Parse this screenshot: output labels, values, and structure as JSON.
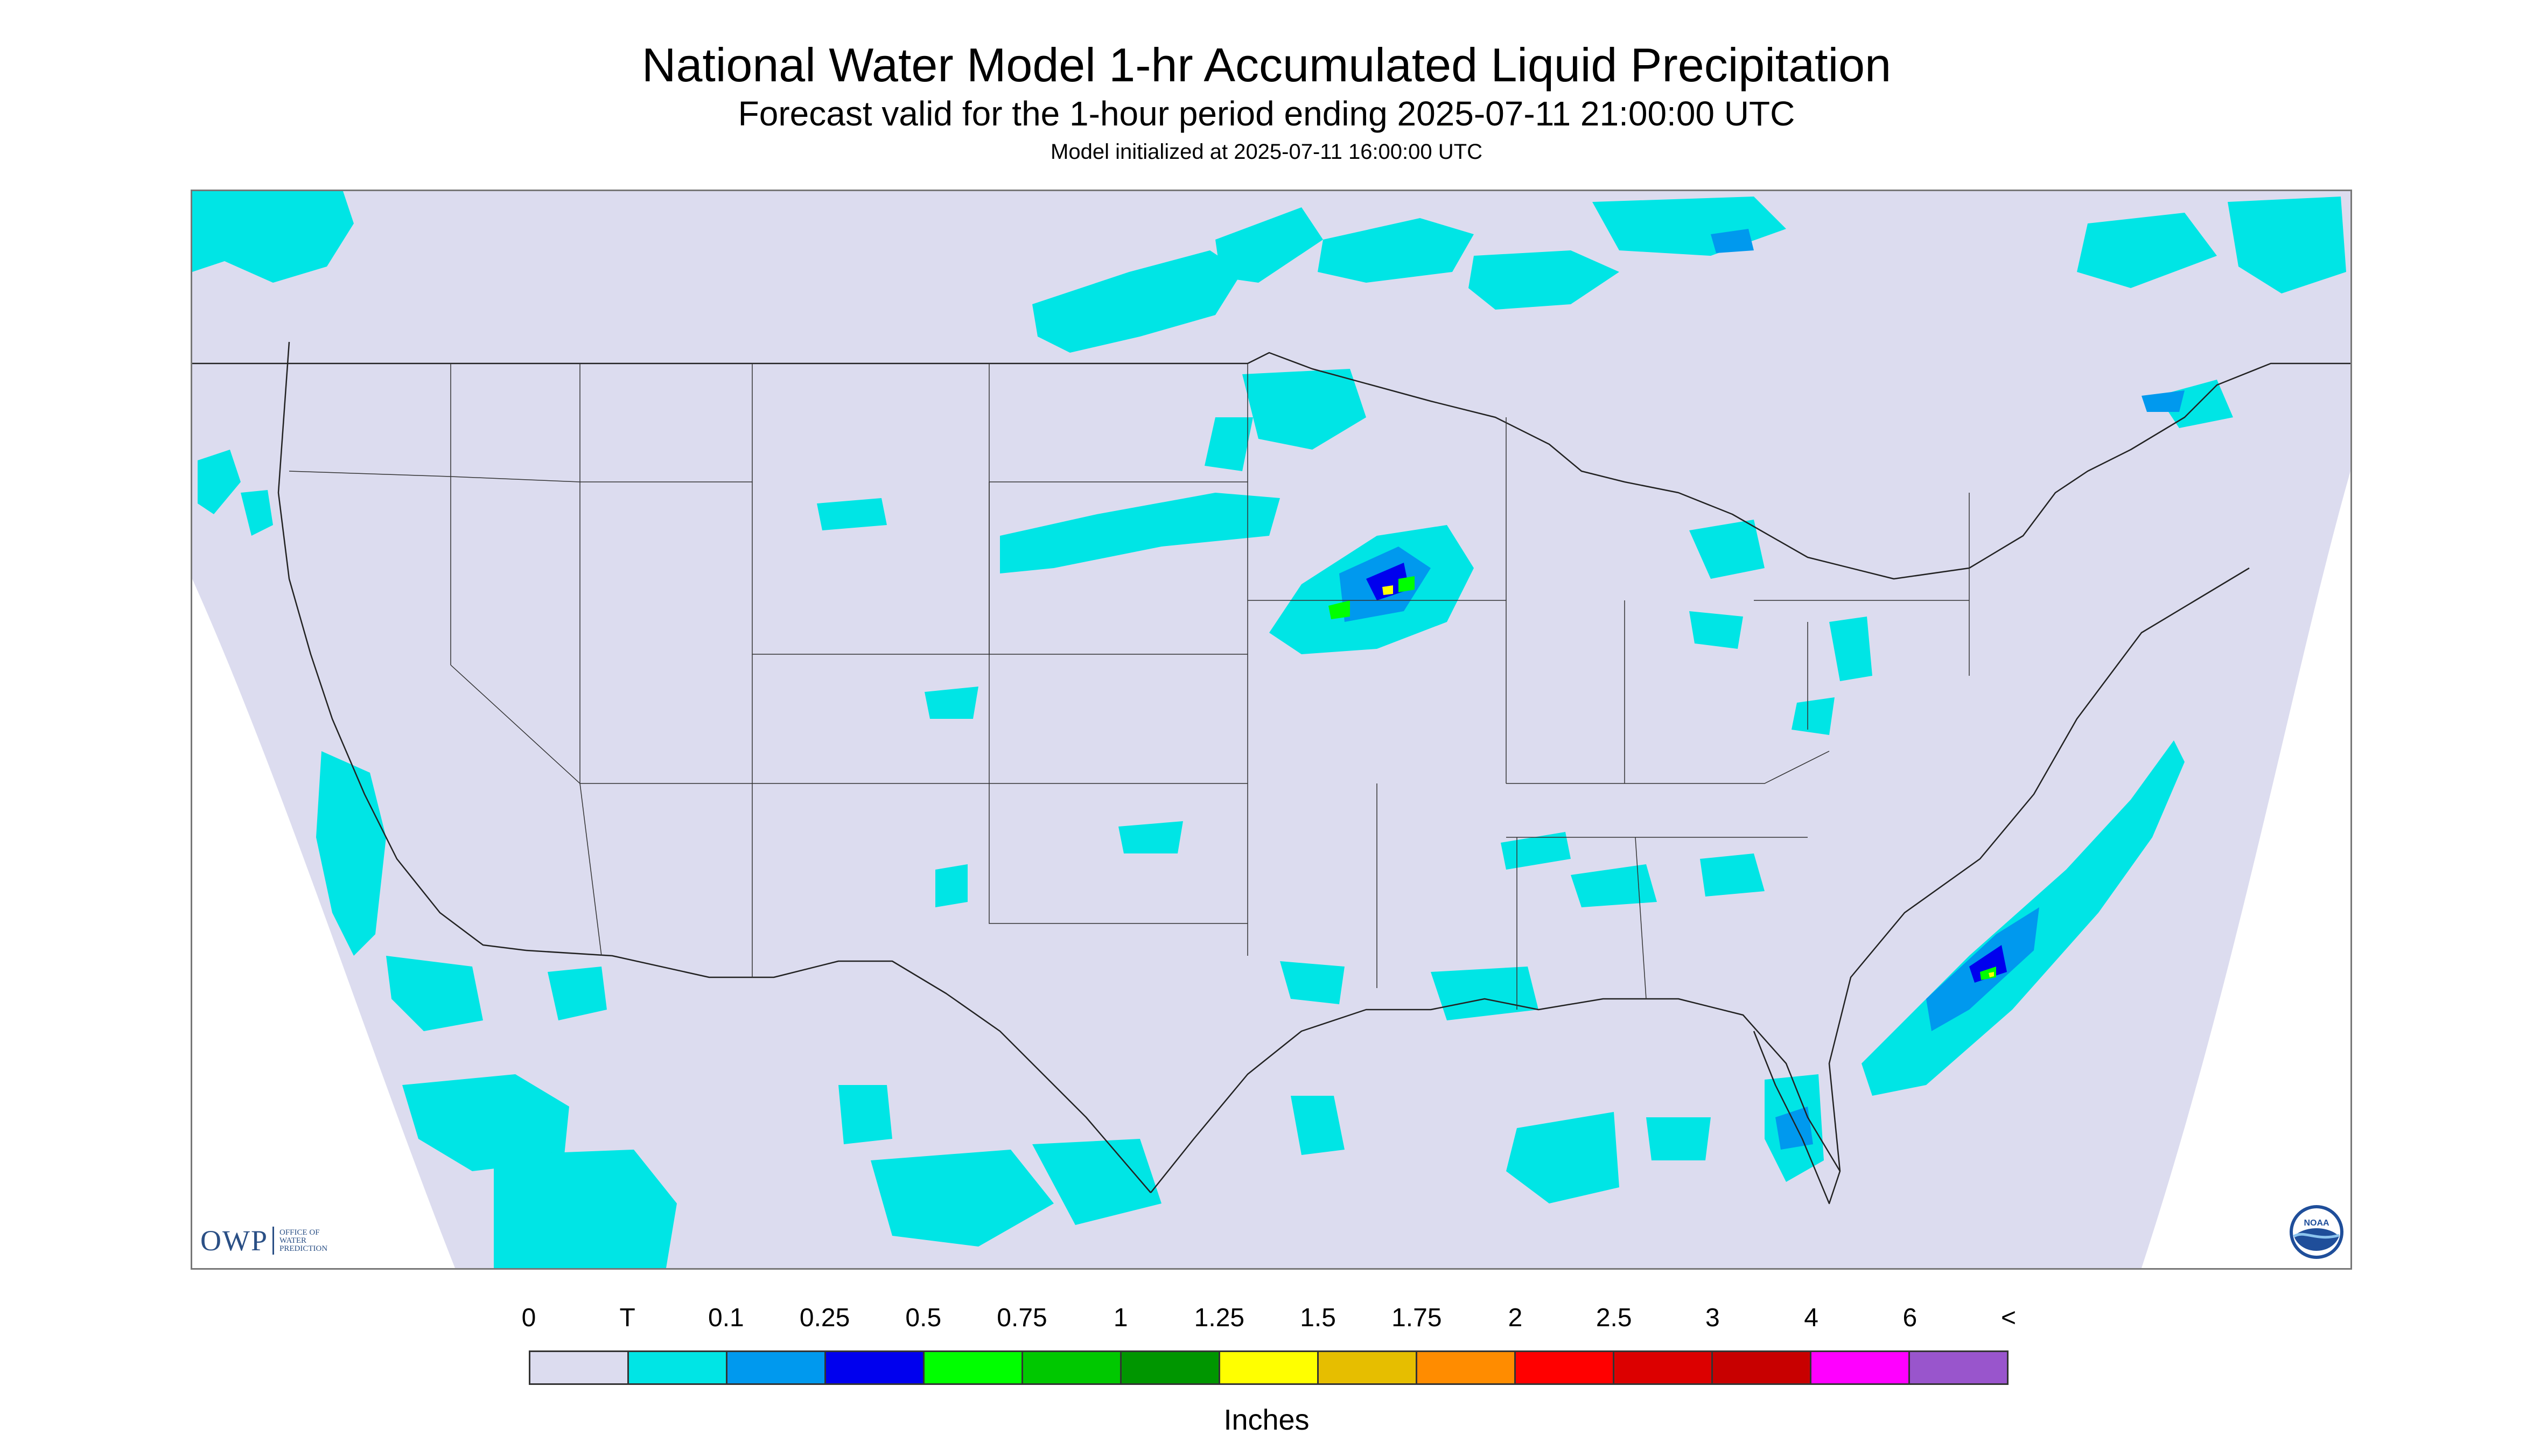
{
  "header": {
    "title": "National Water Model 1-hr Accumulated Liquid Precipitation",
    "subtitle": "Forecast valid for the 1-hour period ending 2025-07-11 21:00:00 UTC",
    "init": "Model initialized at 2025-07-11 16:00:00 UTC"
  },
  "logos": {
    "owp_mark": "OWP",
    "owp_line1": "OFFICE OF",
    "owp_line2": "WATER",
    "owp_line3": "PREDICTION",
    "noaa_text": "NOAA"
  },
  "colors": {
    "no_data_background": "#dcdcef",
    "map_lines": "#222222",
    "precip_trace": "#00e5e5",
    "precip_light": "#0099ee",
    "precip_blue": "#0000ee",
    "precip_green": "#00ff00",
    "precip_yellow": "#ffff00"
  },
  "legend": {
    "units": "Inches",
    "labels": [
      "0",
      "T",
      "0.1",
      "0.25",
      "0.5",
      "0.75",
      "1",
      "1.25",
      "1.5",
      "1.75",
      "2",
      "2.5",
      "3",
      "4",
      "6",
      "<"
    ],
    "colors": [
      "#dcdcef",
      "#00e5e5",
      "#0099ee",
      "#0000ee",
      "#00ff00",
      "#00c800",
      "#009600",
      "#ffff00",
      "#e6be00",
      "#ff8c00",
      "#ff0000",
      "#dc0000",
      "#c80000",
      "#ff00ff",
      "#9955cc"
    ]
  },
  "precip_regions": [
    {
      "name": "pacific-northwest-coast",
      "intensity": "trace"
    },
    {
      "name": "southern-canada-prairies",
      "intensity": "trace-light"
    },
    {
      "name": "upper-midwest-minnesota-iowa",
      "intensity": "heavy"
    },
    {
      "name": "great-lakes-michigan-ohio",
      "intensity": "light"
    },
    {
      "name": "pennsylvania-virginia",
      "intensity": "light"
    },
    {
      "name": "southeast-gulf-states",
      "intensity": "light"
    },
    {
      "name": "atlantic-offshore-carolinas",
      "intensity": "heavy"
    },
    {
      "name": "florida-peninsula",
      "intensity": "moderate"
    },
    {
      "name": "gulf-of-mexico",
      "intensity": "light"
    },
    {
      "name": "northern-mexico",
      "intensity": "light"
    },
    {
      "name": "eastern-pacific-offshore",
      "intensity": "trace"
    },
    {
      "name": "quebec-new-brunswick",
      "intensity": "trace-light"
    }
  ]
}
